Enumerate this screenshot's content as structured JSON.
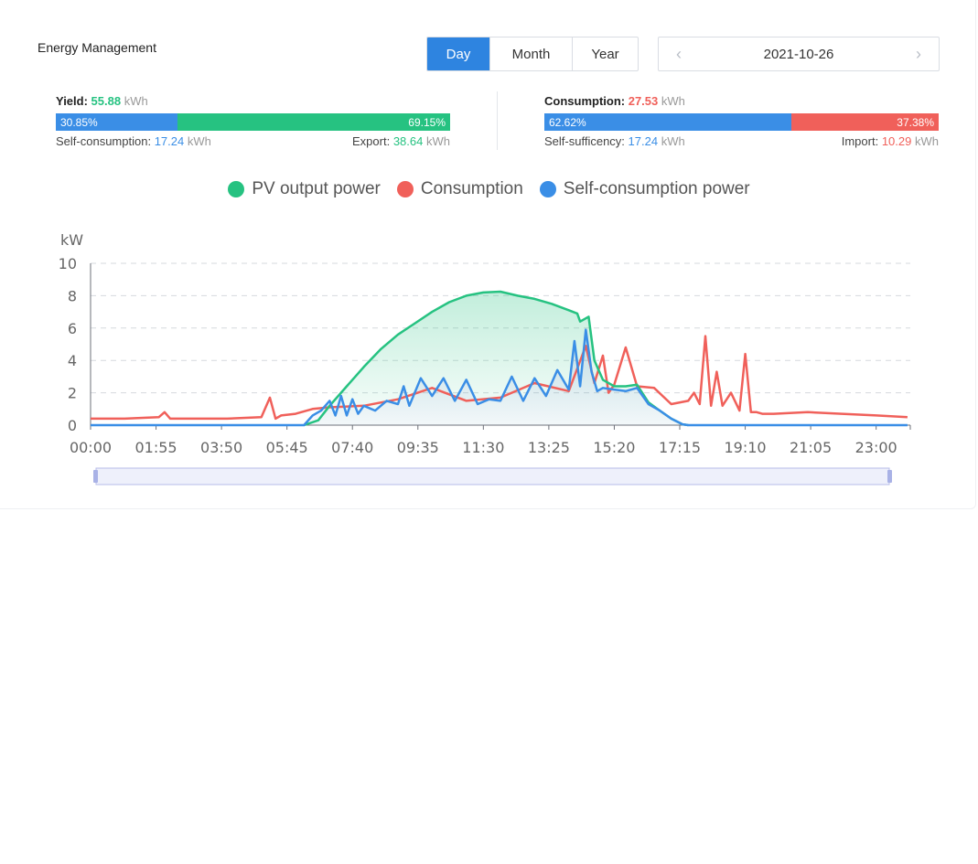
{
  "header": {
    "title": "Energy Management",
    "tabs": [
      {
        "label": "Day",
        "active": true
      },
      {
        "label": "Month",
        "active": false
      },
      {
        "label": "Year",
        "active": false
      }
    ],
    "date": "2021-10-26",
    "prev_icon": "chevron-left-icon",
    "next_icon": "chevron-right-icon"
  },
  "yield": {
    "label": "Yield:",
    "value": "55.88",
    "unit": "kWh",
    "self_pct": 30.85,
    "self_pct_label": "30.85%",
    "export_pct_label": "69.15%",
    "self_label": "Self-consumption:",
    "self_value": "17.24",
    "self_unit": "kWh",
    "export_label": "Export:",
    "export_value": "38.64",
    "export_unit": "kWh"
  },
  "consumption": {
    "label": "Consumption:",
    "value": "27.53",
    "unit": "kWh",
    "self_pct": 62.62,
    "self_pct_label": "62.62%",
    "import_pct_label": "37.38%",
    "self_label": "Self-sufficency:",
    "self_value": "17.24",
    "self_unit": "kWh",
    "import_label": "Import:",
    "import_value": "10.29",
    "import_unit": "kWh"
  },
  "colors": {
    "pv": "#26c281",
    "consumption": "#f0605a",
    "self": "#3a8ee6",
    "active_tab": "#2e84e0"
  },
  "chart_data": {
    "type": "line",
    "ylabel": "kW",
    "ylim": [
      0,
      10
    ],
    "yticks": [
      "0",
      "2",
      "4",
      "6",
      "8",
      "10"
    ],
    "xlim_hours": [
      0,
      24
    ],
    "xticks": [
      "00:00",
      "01:55",
      "03:50",
      "05:45",
      "07:40",
      "09:35",
      "11:30",
      "13:25",
      "15:20",
      "17:15",
      "19:10",
      "21:05",
      "23:00"
    ],
    "grid": true,
    "legend_position": "top-center",
    "series": [
      {
        "name": "PV output power",
        "color": "#26c281",
        "x": [
          "06:15",
          "06:40",
          "07:00",
          "07:30",
          "08:00",
          "08:30",
          "09:00",
          "09:30",
          "10:00",
          "10:30",
          "11:00",
          "11:30",
          "12:00",
          "12:30",
          "13:00",
          "13:30",
          "14:00",
          "14:15",
          "14:20",
          "14:35",
          "14:45",
          "15:00",
          "15:20",
          "15:40",
          "16:00",
          "16:20",
          "16:40",
          "17:00",
          "17:20",
          "17:30"
        ],
        "values": [
          0,
          0.3,
          1.2,
          2.4,
          3.6,
          4.7,
          5.6,
          6.3,
          7.0,
          7.6,
          8.0,
          8.2,
          8.25,
          8.0,
          7.8,
          7.5,
          7.1,
          6.9,
          6.4,
          6.7,
          4.0,
          2.8,
          2.4,
          2.4,
          2.5,
          1.4,
          0.9,
          0.4,
          0.05,
          0
        ]
      },
      {
        "name": "Consumption",
        "color": "#f0605a",
        "x": [
          "00:00",
          "01:00",
          "02:00",
          "02:10",
          "02:20",
          "03:00",
          "04:00",
          "05:00",
          "05:15",
          "05:25",
          "05:35",
          "06:00",
          "06:30",
          "07:00",
          "08:00",
          "09:00",
          "10:00",
          "11:00",
          "12:00",
          "13:00",
          "14:00",
          "14:30",
          "14:45",
          "15:00",
          "15:10",
          "15:20",
          "15:40",
          "16:00",
          "16:30",
          "17:00",
          "17:30",
          "17:40",
          "17:50",
          "18:00",
          "18:10",
          "18:20",
          "18:30",
          "18:45",
          "19:00",
          "19:10",
          "19:20",
          "19:30",
          "19:40",
          "20:00",
          "21:00",
          "22:00",
          "23:00",
          "23:55"
        ],
        "values": [
          0.4,
          0.4,
          0.5,
          0.8,
          0.4,
          0.4,
          0.4,
          0.5,
          1.7,
          0.4,
          0.6,
          0.7,
          1.0,
          1.1,
          1.2,
          1.6,
          2.3,
          1.5,
          1.7,
          2.6,
          2.1,
          4.9,
          2.6,
          4.3,
          2.0,
          2.5,
          4.8,
          2.4,
          2.3,
          1.3,
          1.5,
          2.0,
          1.3,
          5.5,
          1.2,
          3.3,
          1.2,
          2.0,
          0.9,
          4.4,
          0.8,
          0.8,
          0.7,
          0.7,
          0.8,
          0.7,
          0.6,
          0.5
        ]
      },
      {
        "name": "Self-consumption power",
        "color": "#3a8ee6",
        "x": [
          "00:00",
          "06:15",
          "06:30",
          "06:45",
          "07:00",
          "07:10",
          "07:20",
          "07:30",
          "07:40",
          "07:50",
          "08:00",
          "08:20",
          "08:40",
          "09:00",
          "09:10",
          "09:20",
          "09:40",
          "10:00",
          "10:20",
          "10:40",
          "11:00",
          "11:20",
          "11:40",
          "12:00",
          "12:20",
          "12:40",
          "13:00",
          "13:20",
          "13:40",
          "14:00",
          "14:10",
          "14:20",
          "14:30",
          "14:40",
          "14:50",
          "15:00",
          "15:20",
          "15:40",
          "16:00",
          "16:20",
          "16:40",
          "17:00",
          "17:20",
          "17:30",
          "23:55"
        ],
        "values": [
          0,
          0,
          0.6,
          0.9,
          1.5,
          0.6,
          1.8,
          0.6,
          1.6,
          0.7,
          1.2,
          0.9,
          1.5,
          1.3,
          2.4,
          1.2,
          2.9,
          1.8,
          2.9,
          1.5,
          2.8,
          1.3,
          1.6,
          1.5,
          3.0,
          1.5,
          2.9,
          1.8,
          3.4,
          2.2,
          5.2,
          2.4,
          5.9,
          3.3,
          2.1,
          2.3,
          2.2,
          2.1,
          2.3,
          1.3,
          0.9,
          0.4,
          0.05,
          0,
          0
        ]
      }
    ]
  }
}
